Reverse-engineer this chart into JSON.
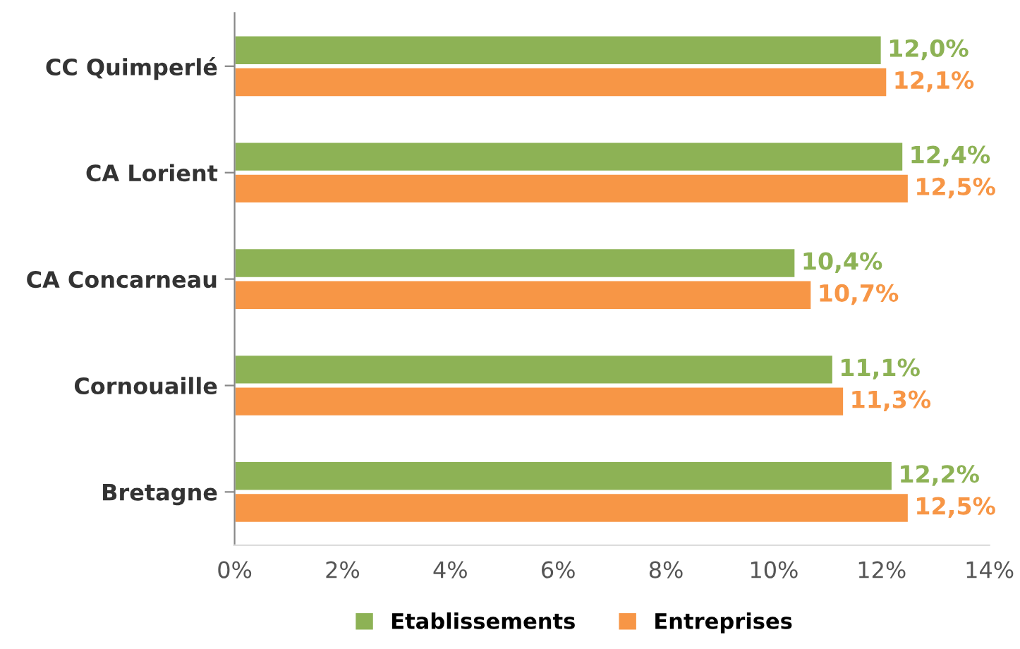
{
  "chart_data": {
    "type": "bar",
    "orientation": "horizontal",
    "categories": [
      "CC Quimperlé",
      "CA Lorient",
      "CA Concarneau",
      "Cornouaille",
      "Bretagne"
    ],
    "series": [
      {
        "name": "Etablissements",
        "color": "#8db255",
        "values": [
          12.0,
          12.4,
          10.4,
          11.1,
          12.2
        ],
        "value_labels": [
          "12,0%",
          "12,4%",
          "10,4%",
          "11,1%",
          "12,2%"
        ]
      },
      {
        "name": "Entreprises",
        "color": "#f79646",
        "values": [
          12.1,
          12.5,
          10.7,
          11.3,
          12.5
        ],
        "value_labels": [
          "12,1%",
          "12,5%",
          "10,7%",
          "11,3%",
          "12,5%"
        ]
      }
    ],
    "xlim": [
      0,
      14
    ],
    "xticks": [
      {
        "value": 0,
        "label": "0%"
      },
      {
        "value": 2,
        "label": "2%"
      },
      {
        "value": 4,
        "label": "4%"
      },
      {
        "value": 6,
        "label": "6%"
      },
      {
        "value": 8,
        "label": "8%"
      },
      {
        "value": 10,
        "label": "10%"
      },
      {
        "value": 12,
        "label": "12%"
      },
      {
        "value": 14,
        "label": "14%"
      }
    ],
    "grid": false,
    "legend": "bottom"
  }
}
